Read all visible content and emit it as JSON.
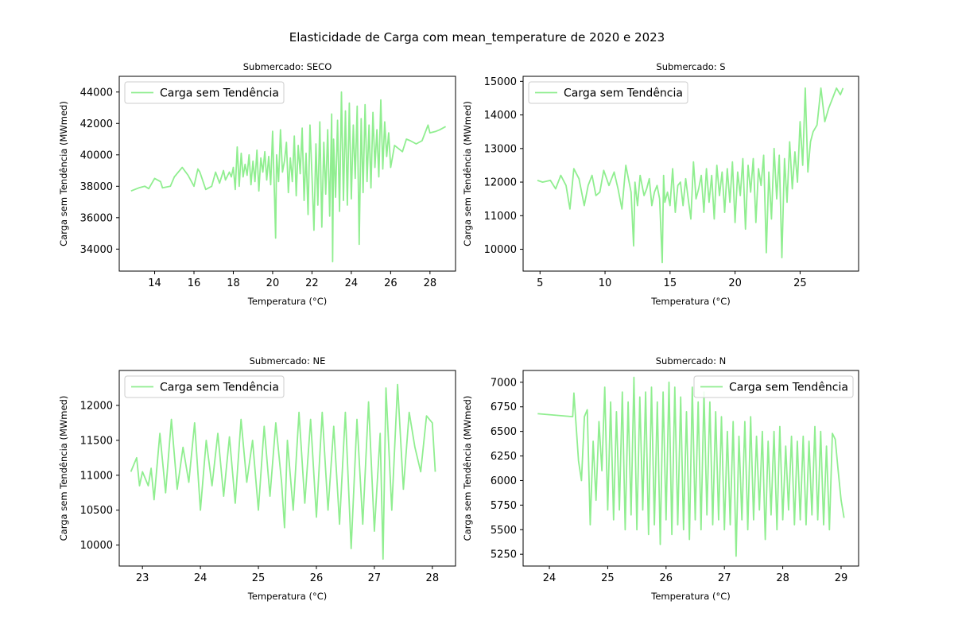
{
  "figure": {
    "title": "Elasticidade de Carga com mean_temperature de  2020 e 2023",
    "line_color": "#90ee90"
  },
  "chart_data": [
    {
      "type": "line",
      "title": "Submercado: SECO",
      "xlabel": "Temperatura (°C)",
      "ylabel": "Carga sem Tendência (MWmed)",
      "xlim": [
        12.2,
        29.3
      ],
      "ylim": [
        32600,
        45000
      ],
      "xticks": [
        14,
        16,
        18,
        20,
        22,
        24,
        26,
        28
      ],
      "yticks": [
        34000,
        36000,
        38000,
        40000,
        42000,
        44000
      ],
      "legend": {
        "position": "upper-left"
      },
      "series": [
        {
          "name": "Carga sem Tendência",
          "x": [
            12.8,
            13.2,
            13.5,
            13.7,
            14.0,
            14.3,
            14.4,
            14.8,
            15.0,
            15.4,
            15.7,
            16.0,
            16.2,
            16.3,
            16.6,
            16.9,
            17.1,
            17.3,
            17.5,
            17.6,
            17.8,
            17.9,
            18.0,
            18.1,
            18.2,
            18.3,
            18.4,
            18.5,
            18.6,
            18.7,
            18.8,
            18.9,
            19.0,
            19.1,
            19.2,
            19.3,
            19.4,
            19.5,
            19.6,
            19.7,
            19.8,
            19.9,
            20.0,
            20.1,
            20.15,
            20.2,
            20.3,
            20.4,
            20.5,
            20.6,
            20.7,
            20.8,
            20.9,
            21.0,
            21.1,
            21.2,
            21.3,
            21.4,
            21.5,
            21.6,
            21.7,
            21.8,
            21.9,
            22.0,
            22.1,
            22.2,
            22.3,
            22.4,
            22.5,
            22.6,
            22.7,
            22.8,
            22.9,
            23.0,
            23.05,
            23.1,
            23.2,
            23.3,
            23.4,
            23.5,
            23.6,
            23.7,
            23.8,
            23.9,
            24.0,
            24.1,
            24.2,
            24.3,
            24.4,
            24.5,
            24.6,
            24.7,
            24.8,
            24.9,
            25.0,
            25.1,
            25.2,
            25.3,
            25.4,
            25.5,
            25.6,
            25.7,
            25.8,
            25.9,
            26.0,
            26.2,
            26.4,
            26.6,
            26.8,
            27.0,
            27.3,
            27.6,
            27.9,
            28.0,
            28.3,
            28.5,
            28.8
          ],
          "y": [
            37700,
            37900,
            38000,
            37850,
            38500,
            38300,
            37900,
            38000,
            38600,
            39200,
            38700,
            38000,
            39100,
            38900,
            37800,
            38000,
            38900,
            38200,
            39000,
            38400,
            38900,
            38600,
            39200,
            37800,
            40500,
            38000,
            40100,
            38600,
            39400,
            38700,
            40000,
            38100,
            39600,
            38300,
            40300,
            37700,
            39800,
            38900,
            40200,
            38400,
            39900,
            38100,
            41500,
            37200,
            34700,
            40000,
            38300,
            41600,
            38900,
            39600,
            40800,
            37600,
            39800,
            38300,
            41200,
            37400,
            40600,
            38800,
            41700,
            37100,
            40100,
            36200,
            41900,
            38700,
            35200,
            40700,
            36800,
            42100,
            35400,
            40800,
            37500,
            41600,
            36100,
            42600,
            33200,
            41000,
            37300,
            42200,
            36400,
            44000,
            37100,
            42800,
            36800,
            43300,
            37200,
            41900,
            38500,
            43100,
            34300,
            42300,
            37600,
            43200,
            38300,
            41900,
            37900,
            42700,
            39200,
            41600,
            38600,
            43500,
            39100,
            42100,
            39900,
            41400,
            39200,
            40600,
            40400,
            40200,
            41000,
            40900,
            40700,
            40900,
            41900,
            41400,
            41500,
            41600,
            41800
          ]
        }
      ]
    },
    {
      "type": "line",
      "title": "Submercado: S",
      "xlabel": "Temperatura (°C)",
      "ylabel": "Carga sem Tendência (MWmed)",
      "xlim": [
        3.7,
        29.5
      ],
      "ylim": [
        9350,
        15150
      ],
      "xticks": [
        5,
        10,
        15,
        20,
        25
      ],
      "yticks": [
        10000,
        11000,
        12000,
        13000,
        14000,
        15000
      ],
      "legend": {
        "position": "upper-left"
      },
      "series": [
        {
          "name": "Carga sem Tendência",
          "x": [
            4.8,
            5.2,
            5.8,
            6.2,
            6.6,
            7.0,
            7.3,
            7.6,
            8.0,
            8.4,
            8.7,
            9.0,
            9.3,
            9.6,
            9.9,
            10.3,
            10.7,
            11.0,
            11.3,
            11.6,
            12.0,
            12.2,
            12.3,
            12.5,
            12.7,
            13.0,
            13.2,
            13.4,
            13.6,
            13.8,
            14.0,
            14.2,
            14.4,
            14.5,
            14.6,
            14.8,
            15.0,
            15.2,
            15.4,
            15.6,
            15.8,
            16.0,
            16.2,
            16.4,
            16.6,
            16.8,
            17.0,
            17.2,
            17.4,
            17.6,
            17.8,
            18.0,
            18.2,
            18.4,
            18.6,
            18.8,
            19.0,
            19.2,
            19.4,
            19.6,
            19.8,
            20.0,
            20.2,
            20.4,
            20.6,
            20.8,
            21.0,
            21.2,
            21.4,
            21.6,
            21.8,
            22.0,
            22.2,
            22.4,
            22.6,
            22.8,
            23.0,
            23.2,
            23.4,
            23.6,
            23.8,
            24.0,
            24.2,
            24.4,
            24.6,
            24.8,
            25.0,
            25.2,
            25.4,
            25.6,
            25.8,
            26.0,
            26.3,
            26.6,
            26.9,
            27.2,
            27.5,
            27.8,
            28.1,
            28.3
          ],
          "y": [
            12050,
            12000,
            12050,
            11800,
            12200,
            11900,
            11200,
            12400,
            12100,
            11300,
            11900,
            12200,
            11600,
            11700,
            12350,
            11900,
            12300,
            11800,
            11200,
            12500,
            11700,
            10100,
            12000,
            11300,
            12200,
            11600,
            11800,
            12100,
            11300,
            11700,
            11900,
            11500,
            9600,
            12200,
            11400,
            11700,
            11300,
            12400,
            11100,
            11900,
            12000,
            11300,
            12100,
            11500,
            10900,
            12600,
            11500,
            11800,
            12200,
            11100,
            12400,
            11400,
            12200,
            10900,
            12500,
            11600,
            12300,
            11100,
            12400,
            11400,
            12600,
            10800,
            12300,
            11600,
            12700,
            10600,
            12500,
            11700,
            12700,
            10800,
            12400,
            11900,
            12800,
            9900,
            12300,
            10900,
            13000,
            11500,
            12800,
            9750,
            12700,
            11400,
            13200,
            11800,
            12900,
            12000,
            13800,
            12500,
            14800,
            12300,
            13200,
            13500,
            13700,
            14800,
            13800,
            14200,
            14500,
            14800,
            14600,
            14800
          ]
        }
      ]
    },
    {
      "type": "line",
      "title": "Submercado: NE",
      "xlabel": "Temperatura (°C)",
      "ylabel": "Carga sem Tendência (MWmed)",
      "xlim": [
        22.6,
        28.4
      ],
      "ylim": [
        9700,
        12500
      ],
      "xticks": [
        23,
        24,
        25,
        26,
        27,
        28
      ],
      "yticks": [
        10000,
        10500,
        11000,
        11500,
        12000
      ],
      "legend": {
        "position": "upper-left"
      },
      "series": [
        {
          "name": "Carga sem Tendência",
          "x": [
            22.8,
            22.9,
            22.95,
            23.0,
            23.1,
            23.15,
            23.2,
            23.3,
            23.4,
            23.5,
            23.6,
            23.7,
            23.8,
            23.9,
            24.0,
            24.1,
            24.2,
            24.3,
            24.4,
            24.5,
            24.6,
            24.7,
            24.8,
            24.9,
            25.0,
            25.1,
            25.2,
            25.3,
            25.4,
            25.45,
            25.5,
            25.6,
            25.7,
            25.8,
            25.9,
            26.0,
            26.1,
            26.2,
            26.3,
            26.4,
            26.5,
            26.6,
            26.7,
            26.8,
            26.9,
            27.0,
            27.1,
            27.15,
            27.2,
            27.3,
            27.4,
            27.5,
            27.6,
            27.7,
            27.8,
            27.9,
            28.0,
            28.05
          ],
          "y": [
            11050,
            11250,
            10850,
            11050,
            10850,
            11100,
            10650,
            11600,
            10750,
            11800,
            10800,
            11400,
            10900,
            11750,
            10500,
            11500,
            10850,
            11600,
            10700,
            11550,
            10600,
            11800,
            10900,
            11500,
            10500,
            11700,
            10700,
            11750,
            10900,
            10250,
            11500,
            10500,
            11900,
            10600,
            11800,
            10400,
            11900,
            10500,
            11700,
            10300,
            11900,
            9950,
            11800,
            10300,
            12050,
            10200,
            11600,
            9800,
            12250,
            10500,
            12300,
            10800,
            11900,
            11400,
            11050,
            11850,
            11750,
            11050
          ]
        }
      ]
    },
    {
      "type": "line",
      "title": "Submercado: N",
      "xlabel": "Temperatura (°C)",
      "ylabel": "Carga sem Tendência (MWmed)",
      "xlim": [
        23.55,
        29.3
      ],
      "ylim": [
        5130,
        7120
      ],
      "xticks": [
        24,
        25,
        26,
        27,
        28,
        29
      ],
      "yticks": [
        5250,
        5500,
        5750,
        6000,
        6250,
        6500,
        6750,
        7000
      ],
      "legend": {
        "position": "upper-right"
      },
      "series": [
        {
          "name": "Carga sem Tendência",
          "x": [
            23.8,
            24.4,
            24.42,
            24.5,
            24.55,
            24.6,
            24.65,
            24.7,
            24.75,
            24.8,
            24.85,
            24.9,
            24.95,
            25.0,
            25.05,
            25.1,
            25.15,
            25.2,
            25.25,
            25.3,
            25.35,
            25.4,
            25.45,
            25.5,
            25.55,
            25.6,
            25.65,
            25.7,
            25.75,
            25.8,
            25.85,
            25.9,
            25.95,
            26.0,
            26.05,
            26.1,
            26.15,
            26.2,
            26.25,
            26.3,
            26.35,
            26.4,
            26.45,
            26.5,
            26.55,
            26.6,
            26.65,
            26.7,
            26.75,
            26.8,
            26.85,
            26.9,
            26.95,
            27.0,
            27.05,
            27.1,
            27.15,
            27.2,
            27.25,
            27.3,
            27.35,
            27.4,
            27.45,
            27.5,
            27.55,
            27.6,
            27.65,
            27.7,
            27.75,
            27.8,
            27.85,
            27.9,
            27.95,
            28.0,
            28.05,
            28.1,
            28.15,
            28.2,
            28.25,
            28.3,
            28.35,
            28.4,
            28.45,
            28.5,
            28.55,
            28.6,
            28.65,
            28.7,
            28.75,
            28.8,
            28.85,
            28.9,
            28.95,
            29.0,
            29.05
          ],
          "y": [
            6680,
            6650,
            6890,
            6200,
            6000,
            6650,
            6720,
            5550,
            6400,
            5800,
            6600,
            6100,
            6950,
            5700,
            6800,
            5600,
            6700,
            5700,
            6900,
            5500,
            6800,
            5650,
            7050,
            5500,
            6850,
            5700,
            6900,
            5450,
            6950,
            5550,
            6800,
            5350,
            6900,
            5600,
            7000,
            5450,
            6950,
            5550,
            6850,
            5500,
            6700,
            5400,
            6950,
            5600,
            6800,
            5500,
            6900,
            5650,
            6800,
            5550,
            6700,
            5600,
            6650,
            5500,
            6500,
            5550,
            6600,
            5230,
            6450,
            5600,
            6600,
            5500,
            6650,
            5600,
            6450,
            5700,
            6500,
            5400,
            6400,
            5650,
            6500,
            5500,
            6550,
            5600,
            6350,
            5700,
            6450,
            5550,
            6400,
            5600,
            6450,
            5550,
            6400,
            5650,
            6550,
            5600,
            6500,
            5550,
            6350,
            5500,
            6480,
            6420,
            6100,
            5800,
            5620
          ]
        }
      ]
    }
  ]
}
